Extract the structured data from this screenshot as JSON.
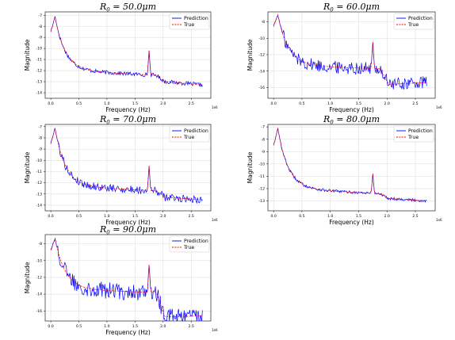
{
  "figure": {
    "background": "#ffffff",
    "colors": {
      "prediction": "#0000ff",
      "true": "#ff0000",
      "grid": "#d9d9d9"
    }
  },
  "chart_data": [
    {
      "type": "line",
      "title_symbol": "R",
      "title_subscript": "0",
      "title_value": " = 50.0μm",
      "xlabel": "Frequency (Hz)",
      "ylabel": "Magnitude",
      "x_offset_label": "1e6",
      "xlim": [
        -0.1,
        2.85
      ],
      "ylim": [
        -14.5,
        -6.7
      ],
      "xticks": [
        0.0,
        0.5,
        1.0,
        1.5,
        2.0,
        2.5
      ],
      "xtick_labels": [
        "0.0",
        "0.5",
        "1.0",
        "1.5",
        "2.0",
        "2.5"
      ],
      "yticks": [
        -7,
        -8,
        -9,
        -10,
        -11,
        -12,
        -13,
        -14
      ],
      "ytick_labels": [
        "-7",
        "-8",
        "-9",
        "-10",
        "-11",
        "-12",
        "-13",
        "-14"
      ],
      "grid": true,
      "legend_position": "top-right",
      "peak_x": [
        0.07,
        1.75
      ],
      "peak_y": [
        -7.2,
        -10.2
      ],
      "base_value": -12.2,
      "tail_after_1_9": -13.0,
      "end_value": -13.3,
      "noise_amplitude": 0.18,
      "series": [
        {
          "name": "Prediction",
          "style": "solid"
        },
        {
          "name": "True",
          "style": "dashed"
        }
      ]
    },
    {
      "type": "line",
      "title_symbol": "R",
      "title_subscript": "0",
      "title_value": " = 60.0μm",
      "xlabel": "Frequency (Hz)",
      "ylabel": "Magnitude",
      "x_offset_label": "1e6",
      "xlim": [
        -0.1,
        2.85
      ],
      "ylim": [
        -17.3,
        -6.8
      ],
      "xticks": [
        0.0,
        0.5,
        1.0,
        1.5,
        2.0,
        2.5
      ],
      "xtick_labels": [
        "0.0",
        "0.5",
        "1.0",
        "1.5",
        "2.0",
        "2.5"
      ],
      "yticks": [
        -8,
        -10,
        -12,
        -14,
        -16
      ],
      "ytick_labels": [
        "-8",
        "-10",
        "-12",
        "-14",
        "-16"
      ],
      "grid": true,
      "legend_position": "top-right",
      "peak_x": [
        0.07,
        1.75
      ],
      "peak_y": [
        -7.2,
        -10.5
      ],
      "base_value": -13.5,
      "tail_after_1_9": -15.6,
      "end_value": -15.4,
      "noise_amplitude": 0.8,
      "series": [
        {
          "name": "Prediction",
          "style": "solid"
        },
        {
          "name": "True",
          "style": "dashed"
        }
      ]
    },
    {
      "type": "line",
      "title_symbol": "R",
      "title_subscript": "0",
      "title_value": " = 70.0μm",
      "xlabel": "Frequency (Hz)",
      "ylabel": "Magnitude",
      "x_offset_label": "1e6",
      "xlim": [
        -0.1,
        2.85
      ],
      "ylim": [
        -14.5,
        -6.8
      ],
      "xticks": [
        0.0,
        0.5,
        1.0,
        1.5,
        2.0,
        2.5
      ],
      "xtick_labels": [
        "0.0",
        "0.5",
        "1.0",
        "1.5",
        "2.0",
        "2.5"
      ],
      "yticks": [
        -7,
        -8,
        -9,
        -10,
        -11,
        -12,
        -13,
        -14
      ],
      "ytick_labels": [
        "-7",
        "-8",
        "-9",
        "-10",
        "-11",
        "-12",
        "-13",
        "-14"
      ],
      "grid": true,
      "legend_position": "top-right",
      "peak_x": [
        0.07,
        1.75
      ],
      "peak_y": [
        -7.2,
        -10.5
      ],
      "base_value": -12.5,
      "tail_after_1_9": -13.3,
      "end_value": -13.5,
      "noise_amplitude": 0.35,
      "series": [
        {
          "name": "Prediction",
          "style": "solid"
        },
        {
          "name": "True",
          "style": "dashed"
        }
      ]
    },
    {
      "type": "line",
      "title_symbol": "R",
      "title_subscript": "0",
      "title_value": " = 80.0μm",
      "xlabel": "Frequency (Hz)",
      "ylabel": "Magnitude",
      "x_offset_label": "1e6",
      "xlim": [
        -0.1,
        2.85
      ],
      "ylim": [
        -13.8,
        -6.8
      ],
      "xticks": [
        0.0,
        0.5,
        1.0,
        1.5,
        2.0,
        2.5
      ],
      "xtick_labels": [
        "0.0",
        "0.5",
        "1.0",
        "1.5",
        "2.0",
        "2.5"
      ],
      "yticks": [
        -7,
        -8,
        -9,
        -10,
        -11,
        -12,
        -13
      ],
      "ytick_labels": [
        "-7",
        "-8",
        "-9",
        "-10",
        "-11",
        "-12",
        "-13"
      ],
      "grid": true,
      "legend_position": "top-right",
      "peak_x": [
        0.07,
        1.75
      ],
      "peak_y": [
        -7.2,
        -10.8
      ],
      "base_value": -12.2,
      "tail_after_1_9": -12.8,
      "end_value": -13.0,
      "noise_amplitude": 0.12,
      "series": [
        {
          "name": "Prediction",
          "style": "solid"
        },
        {
          "name": "True",
          "style": "dashed"
        }
      ]
    },
    {
      "type": "line",
      "title_symbol": "R",
      "title_subscript": "0",
      "title_value": " = 90.0μm",
      "xlabel": "Frequency (Hz)",
      "ylabel": "Magnitude",
      "x_offset_label": "1e6",
      "xlim": [
        -0.1,
        2.85
      ],
      "ylim": [
        -17.2,
        -6.9
      ],
      "xticks": [
        0.0,
        0.5,
        1.0,
        1.5,
        2.0,
        2.5
      ],
      "xtick_labels": [
        "0.0",
        "0.5",
        "1.0",
        "1.5",
        "2.0",
        "2.5"
      ],
      "yticks": [
        -8,
        -10,
        -12,
        -14,
        -16
      ],
      "ytick_labels": [
        "-8",
        "-10",
        "-12",
        "-14",
        "-16"
      ],
      "grid": true,
      "legend_position": "top-right",
      "peak_x": [
        0.07,
        1.75
      ],
      "peak_y": [
        -7.4,
        -10.5
      ],
      "base_value": -13.6,
      "tail_after_1_9": -16.7,
      "end_value": -16.6,
      "noise_amplitude": 1.0,
      "series": [
        {
          "name": "Prediction",
          "style": "solid"
        },
        {
          "name": "True",
          "style": "dashed"
        }
      ]
    }
  ]
}
